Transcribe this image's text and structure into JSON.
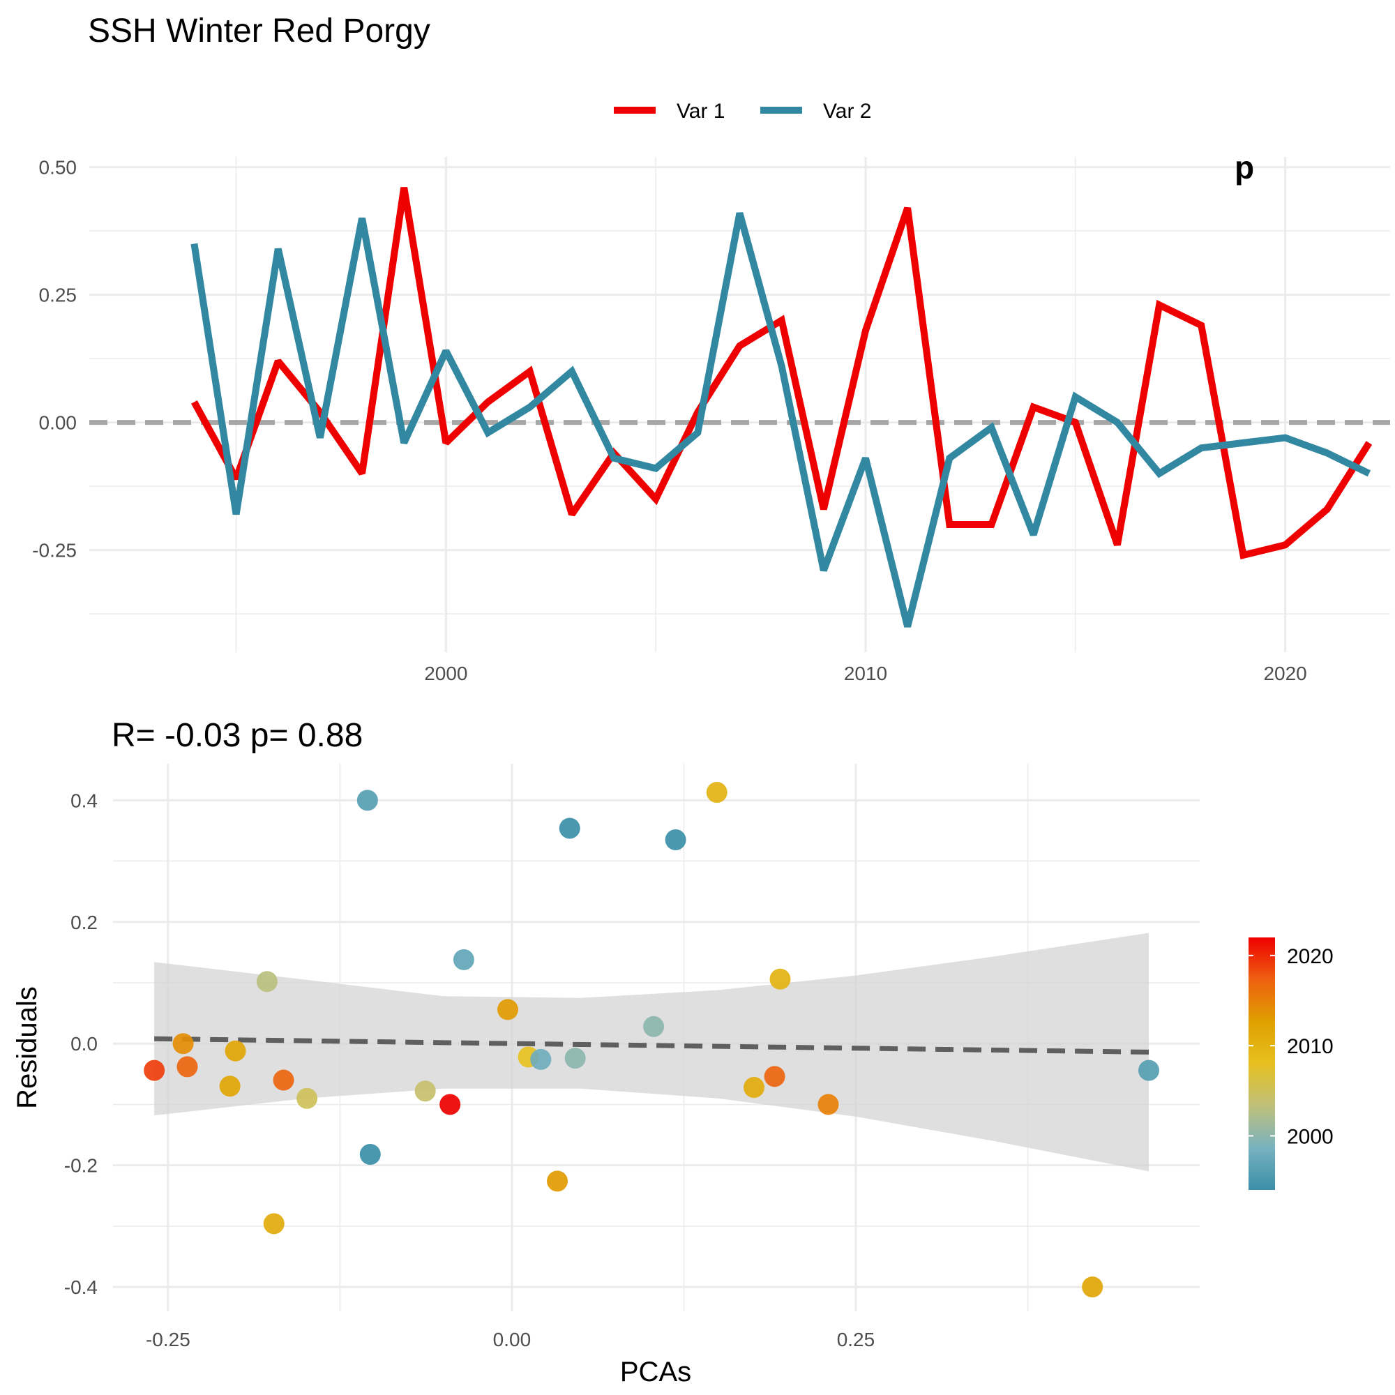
{
  "title": "SSH Winter  Red Porgy",
  "colors": {
    "var1": "#EE0000",
    "var2": "#3288A0",
    "zero_line": "#A6A6A6",
    "grid": "#EBEBEB",
    "fit_line": "#5F5F5F",
    "ribbon": "#D3D3D3",
    "gradient": [
      "#3A8FA8",
      "#78B2C0",
      "#BFC07A",
      "#E6C020",
      "#E0A000",
      "#EE6010",
      "#EE0000"
    ]
  },
  "chart_data": [
    {
      "type": "line",
      "title": "SSH Winter  Red Porgy",
      "xlabel": "",
      "ylabel": "",
      "xlim": [
        1991.5,
        2022.5
      ],
      "ylim": [
        -0.45,
        0.52
      ],
      "x_ticks": [
        2000,
        2010,
        2020
      ],
      "x_tick_labels": [
        "2000",
        "2010",
        "2020"
      ],
      "y_ticks": [
        -0.25,
        0,
        0.25,
        0.5
      ],
      "y_tick_labels": [
        "-0.25",
        "0.00",
        "0.25",
        "0.50"
      ],
      "grid": true,
      "legend_position": "top",
      "corner_annotation": "p",
      "x": [
        1994,
        1995,
        1996,
        1997,
        1998,
        1999,
        2000,
        2001,
        2002,
        2003,
        2004,
        2005,
        2006,
        2007,
        2008,
        2009,
        2010,
        2011,
        2012,
        2013,
        2014,
        2015,
        2016,
        2017,
        2018,
        2019,
        2020,
        2021,
        2022
      ],
      "series": [
        {
          "name": "Var 1",
          "color": "#EE0000",
          "values": [
            0.04,
            -0.11,
            0.12,
            0.02,
            -0.1,
            0.46,
            -0.04,
            0.04,
            0.1,
            -0.18,
            -0.06,
            -0.15,
            0.02,
            0.15,
            0.2,
            -0.17,
            0.18,
            0.42,
            -0.2,
            -0.2,
            0.03,
            0,
            -0.24,
            0.23,
            0.19,
            -0.26,
            -0.24,
            -0.17,
            -0.04
          ]
        },
        {
          "name": "Var 2",
          "color": "#3288A0",
          "values": [
            0.35,
            -0.18,
            0.34,
            -0.03,
            0.4,
            -0.04,
            0.14,
            -0.02,
            0.03,
            0.1,
            -0.07,
            -0.09,
            -0.02,
            0.41,
            0.11,
            -0.29,
            -0.07,
            -0.4,
            -0.07,
            -0.01,
            -0.22,
            0.05,
            0,
            -0.1,
            -0.05,
            -0.04,
            -0.03,
            -0.06,
            -0.1
          ]
        }
      ],
      "reference_line": 0
    },
    {
      "type": "scatter",
      "title": "R= -0.03  p= 0.88",
      "xlabel": "PCAs",
      "ylabel": "Residuals",
      "xlim": [
        -0.29,
        0.5
      ],
      "ylim": [
        -0.44,
        0.46
      ],
      "x_ticks": [
        -0.25,
        0,
        0.25
      ],
      "x_tick_labels": [
        "-0.25",
        "0.00",
        "0.25"
      ],
      "y_ticks": [
        -0.4,
        -0.2,
        0,
        0.2,
        0.4
      ],
      "y_tick_labels": [
        "-0.4",
        "-0.2",
        "0.0",
        "0.2",
        "0.4"
      ],
      "grid": true,
      "legend_position": "right",
      "color_scale": {
        "min": 1994,
        "max": 2022,
        "ticks": [
          2000,
          2010,
          2020
        ],
        "tick_labels": [
          "2000",
          "2010",
          "2020"
        ]
      },
      "points": [
        {
          "x": -0.105,
          "y": 0.4,
          "year": 1996
        },
        {
          "x": 0.042,
          "y": 0.354,
          "year": 1994
        },
        {
          "x": 0.119,
          "y": 0.335,
          "year": 1994
        },
        {
          "x": 0.149,
          "y": 0.413,
          "year": 2010
        },
        {
          "x": -0.035,
          "y": 0.138,
          "year": 1997
        },
        {
          "x": -0.178,
          "y": 0.102,
          "year": 2003
        },
        {
          "x": -0.003,
          "y": 0.056,
          "year": 2013
        },
        {
          "x": 0.195,
          "y": 0.106,
          "year": 2010
        },
        {
          "x": 0.103,
          "y": 0.028,
          "year": 2000
        },
        {
          "x": -0.239,
          "y": 0.0,
          "year": 2014
        },
        {
          "x": -0.201,
          "y": -0.012,
          "year": 2012
        },
        {
          "x": -0.26,
          "y": -0.044,
          "year": 2019
        },
        {
          "x": -0.236,
          "y": -0.038,
          "year": 2017
        },
        {
          "x": -0.205,
          "y": -0.07,
          "year": 2012
        },
        {
          "x": -0.166,
          "y": -0.06,
          "year": 2017
        },
        {
          "x": -0.149,
          "y": -0.09,
          "year": 2005
        },
        {
          "x": -0.063,
          "y": -0.078,
          "year": 2004
        },
        {
          "x": -0.045,
          "y": -0.1,
          "year": 2022
        },
        {
          "x": 0.012,
          "y": -0.022,
          "year": 2008
        },
        {
          "x": 0.021,
          "y": -0.026,
          "year": 1998
        },
        {
          "x": 0.046,
          "y": -0.024,
          "year": 2000
        },
        {
          "x": 0.176,
          "y": -0.072,
          "year": 2011
        },
        {
          "x": 0.191,
          "y": -0.054,
          "year": 2017
        },
        {
          "x": 0.23,
          "y": -0.1,
          "year": 2015
        },
        {
          "x": -0.103,
          "y": -0.182,
          "year": 1994
        },
        {
          "x": 0.033,
          "y": -0.226,
          "year": 2013
        },
        {
          "x": -0.173,
          "y": -0.296,
          "year": 2011
        },
        {
          "x": 0.422,
          "y": -0.4,
          "year": 2012
        },
        {
          "x": 0.463,
          "y": -0.044,
          "year": 1996
        }
      ],
      "fit_line": {
        "x": [
          -0.26,
          0.463
        ],
        "y": [
          0.008,
          -0.014
        ]
      },
      "ribbon": {
        "x": [
          -0.26,
          -0.15,
          -0.05,
          0.05,
          0.15,
          0.25,
          0.35,
          0.463
        ],
        "upper": [
          0.134,
          0.105,
          0.078,
          0.075,
          0.088,
          0.112,
          0.143,
          0.182
        ],
        "lower": [
          -0.118,
          -0.09,
          -0.074,
          -0.074,
          -0.09,
          -0.12,
          -0.16,
          -0.21
        ]
      }
    }
  ]
}
